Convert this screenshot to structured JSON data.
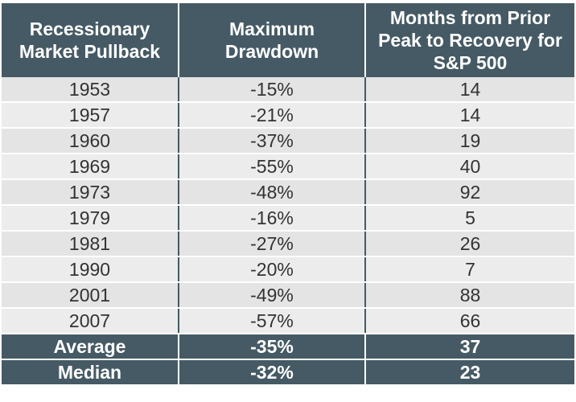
{
  "chart_data": {
    "type": "table",
    "columns": [
      "Recessionary\nMarket Pullback",
      "Maximum\nDrawdown",
      "Months from Prior\nPeak to Recovery for\nS&P 500"
    ],
    "rows": [
      [
        "1953",
        "-15%",
        "14"
      ],
      [
        "1957",
        "-21%",
        "14"
      ],
      [
        "1960",
        "-37%",
        "19"
      ],
      [
        "1969",
        "-55%",
        "40"
      ],
      [
        "1973",
        "-48%",
        "92"
      ],
      [
        "1979",
        "-16%",
        "5"
      ],
      [
        "1981",
        "-27%",
        "26"
      ],
      [
        "1990",
        "-20%",
        "7"
      ],
      [
        "2001",
        "-49%",
        "88"
      ],
      [
        "2007",
        "-57%",
        "66"
      ]
    ],
    "summary_rows": [
      [
        "Average",
        "-35%",
        "37"
      ],
      [
        "Median",
        "-32%",
        "23"
      ]
    ]
  },
  "colors": {
    "header_bg": "#455a64",
    "row_bg": "#e4e4e4",
    "row_alt_bg": "#ececec"
  }
}
